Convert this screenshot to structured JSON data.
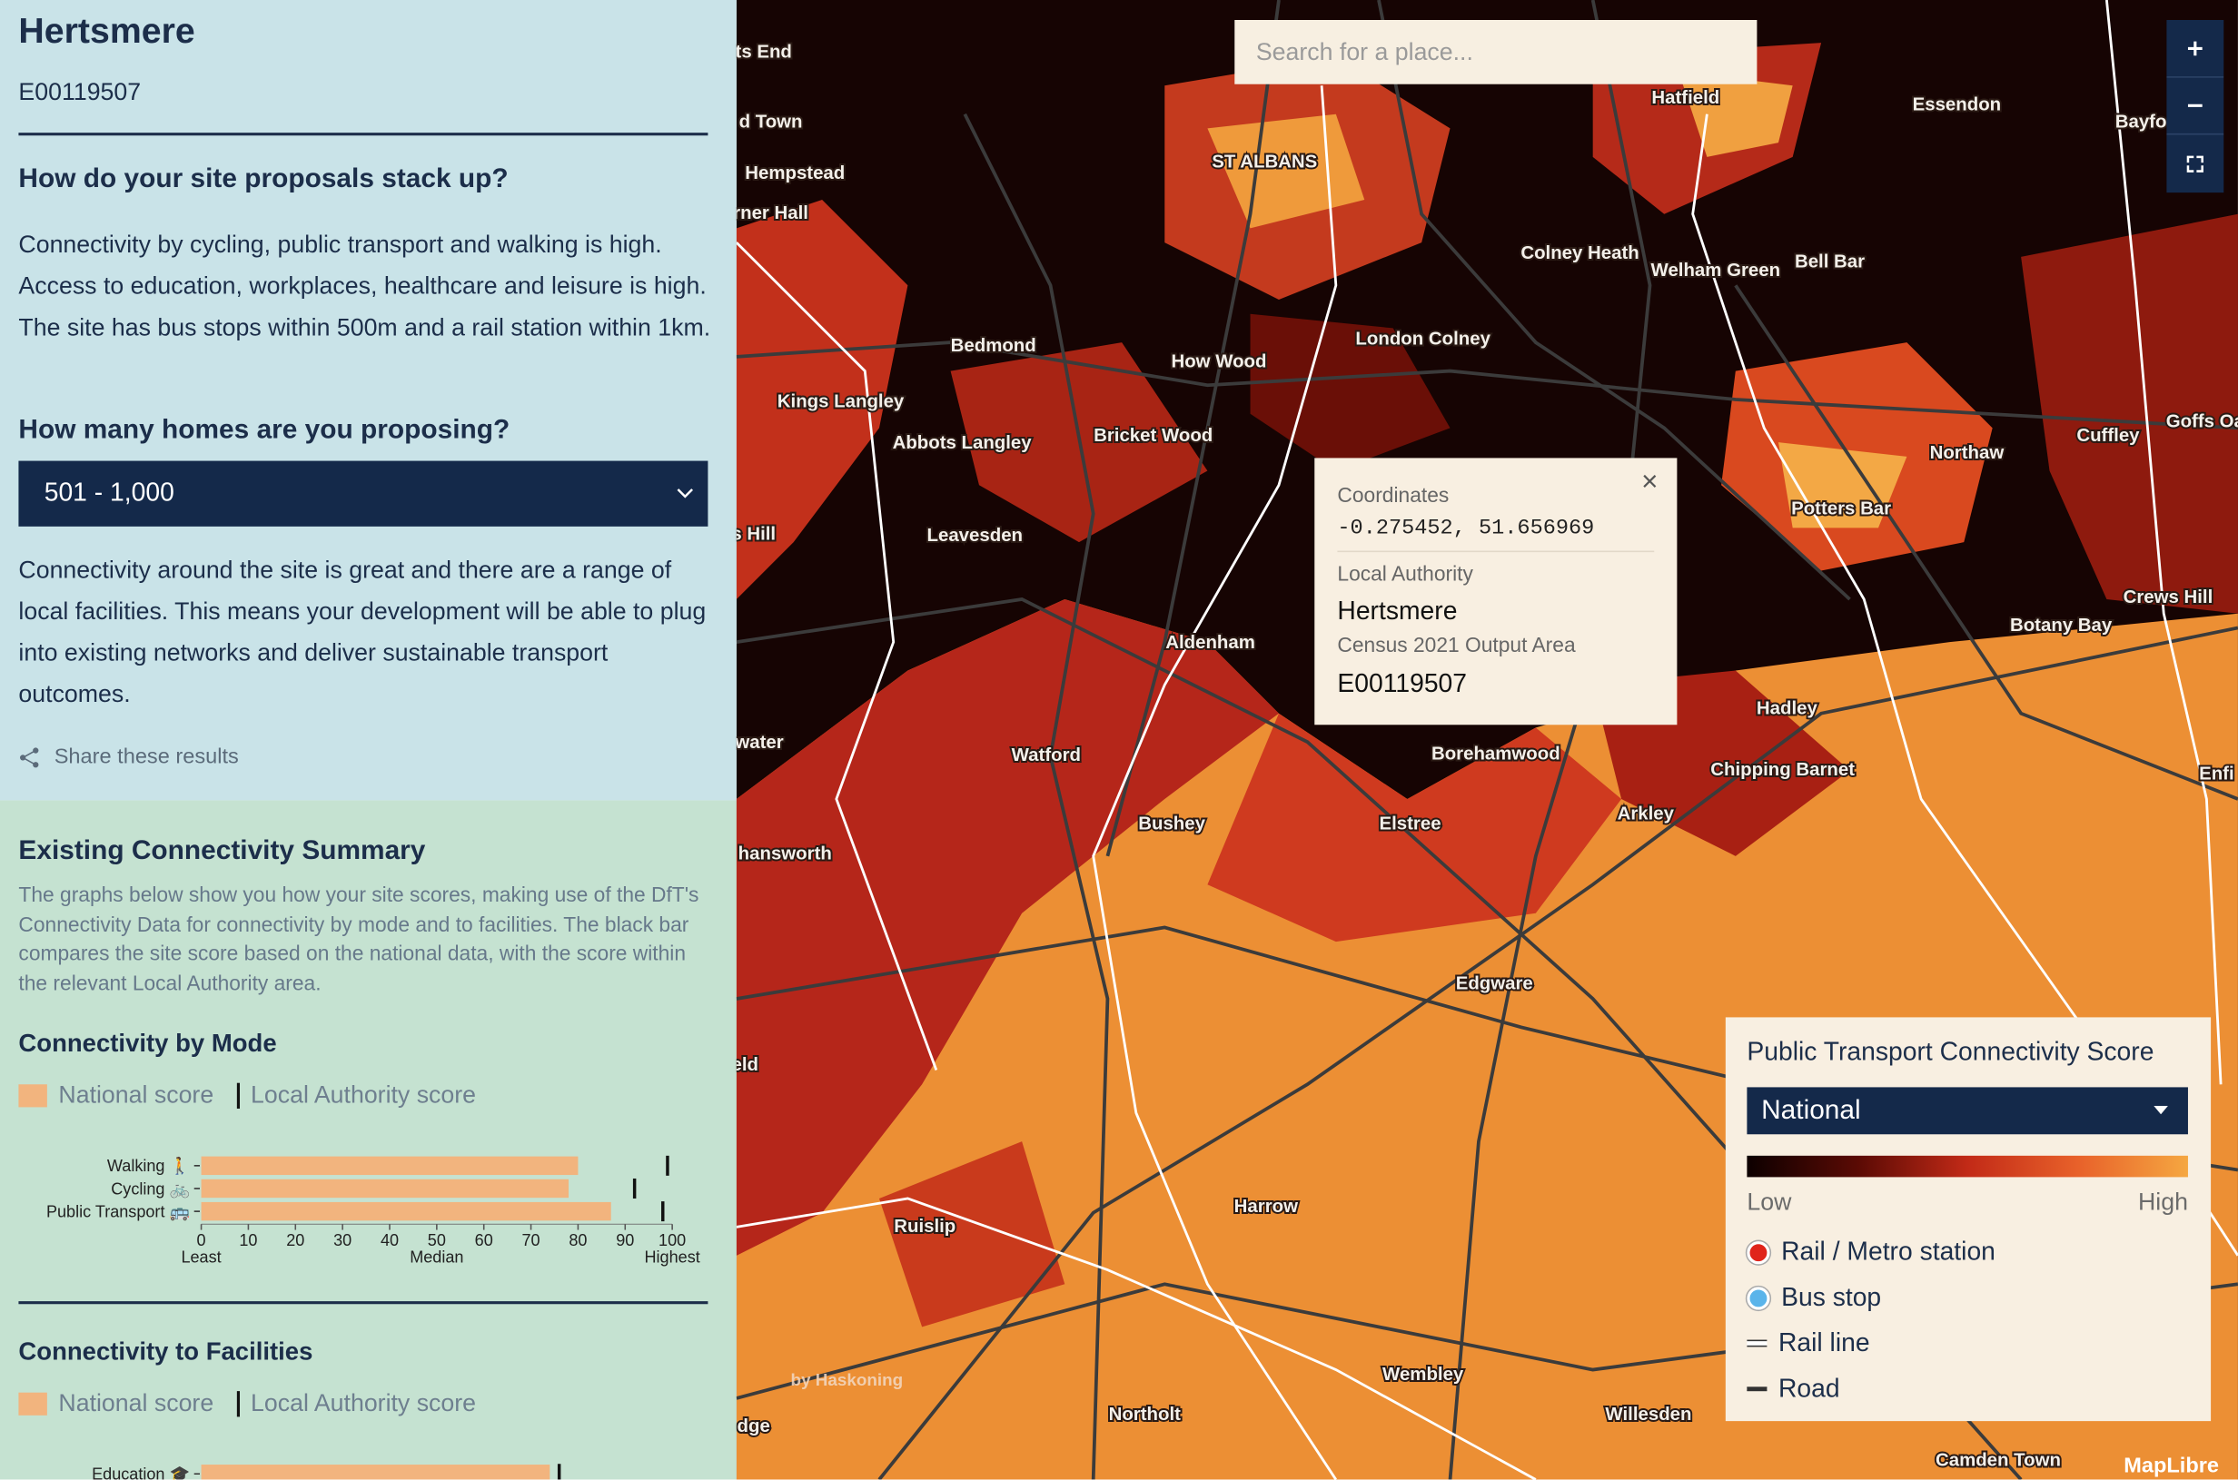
{
  "sidebar": {
    "title": "Hertsmere",
    "code": "E00119507",
    "question_1": "How do your site proposals stack up?",
    "summary": "Connectivity by cycling, public transport and walking is high. Access to education, workplaces, healthcare and leisure is high. The site has bus stops within 500m and a rail station within 1km.",
    "question_2": "How many homes are you proposing?",
    "homes_select": "501 - 1,000",
    "homes_text": "Connectivity around the site is great and there are a range of local facilities. This means your development will be able to plug into existing networks and deliver sustainable transport outcomes.",
    "share": "Share these results"
  },
  "summary_section": {
    "title": "Existing Connectivity Summary",
    "description": "The graphs below show you how your site scores, making use of the DfT's Connectivity Data for connectivity by mode and to facilities. The black bar compares the site score based on the national data, with the score within the relevant Local Authority area."
  },
  "mode_chart": {
    "type": "bar",
    "title": "Connectivity by Mode",
    "legend": [
      "National score",
      "Local Authority score"
    ],
    "categories": [
      "Walking 🚶",
      "Cycling 🚲",
      "Public Transport 🚌"
    ],
    "series": [
      {
        "name": "National score",
        "color": "#f2b47e",
        "values": [
          80,
          78,
          87
        ]
      },
      {
        "name": "Local Authority score",
        "color": "#111111",
        "values": [
          99,
          92,
          98
        ]
      }
    ],
    "xlim": [
      0,
      100
    ],
    "xticks": [
      0,
      10,
      20,
      30,
      40,
      50,
      60,
      70,
      80,
      90,
      100
    ],
    "axis_labels": [
      {
        "value": 0,
        "label": "Least"
      },
      {
        "value": 50,
        "label": "Median"
      },
      {
        "value": 100,
        "label": "Highest"
      }
    ]
  },
  "facilities_chart": {
    "type": "bar",
    "title": "Connectivity to Facilities",
    "legend": [
      "National score",
      "Local Authority score"
    ],
    "categories": [
      "Education 🎓"
    ],
    "series": [
      {
        "name": "National score",
        "color": "#f2b47e",
        "values": [
          74
        ]
      },
      {
        "name": "Local Authority score",
        "color": "#111111",
        "values": [
          76
        ]
      }
    ],
    "xlim": [
      0,
      100
    ]
  },
  "map": {
    "search_placeholder": "Search for a place...",
    "place_labels": [
      "ST ALBANS",
      "Hatfield",
      "Essendon",
      "Bayfo",
      "Hempstead",
      "Colney Heath",
      "Welham Green",
      "Bell Bar",
      "Bedmond",
      "How Wood",
      "London Colney",
      "Kings Langley",
      "Abbots Langley",
      "Bricket Wood",
      "Northaw",
      "Cuffley",
      "Goffs Oa",
      "Potters Bar",
      "Leavesden",
      "Aldenham",
      "Botany Bay",
      "Crews Hill",
      "Hadley",
      "Watford",
      "Borehamwood",
      "Chipping Barnet",
      "Bushey",
      "Elstree",
      "Arkley",
      "Edgware",
      "Harrow",
      "Ruislip",
      "Wembley",
      "Northolt",
      "Willesden",
      "Camden Town",
      "ts End",
      "d Town",
      "rner Hall",
      "s Hill",
      "water",
      "hansworth",
      "eld",
      "dge",
      "Enfi"
    ],
    "popup": {
      "coordinates_label": "Coordinates",
      "coordinates": "-0.275452, 51.656969",
      "authority_label": "Local Authority",
      "authority": "Hertsmere",
      "area_label": "Census 2021 Output Area",
      "area": "E00119507",
      "close": "×"
    },
    "legend": {
      "title": "Public Transport Connectivity Score",
      "select": "National",
      "low": "Low",
      "high": "High",
      "gradient": [
        "#0d0000",
        "#5a0a04",
        "#c22a17",
        "#e8612a",
        "#f5a741"
      ],
      "items": [
        {
          "label": "Rail / Metro station",
          "color": "#e0241b"
        },
        {
          "label": "Bus stop",
          "color": "#5ab4ea"
        },
        {
          "label": "Rail line",
          "color": "#ffffff"
        },
        {
          "label": "Road",
          "color": "#333333"
        }
      ]
    },
    "logo": "by Haskoning",
    "attribution": "MapLibre"
  }
}
